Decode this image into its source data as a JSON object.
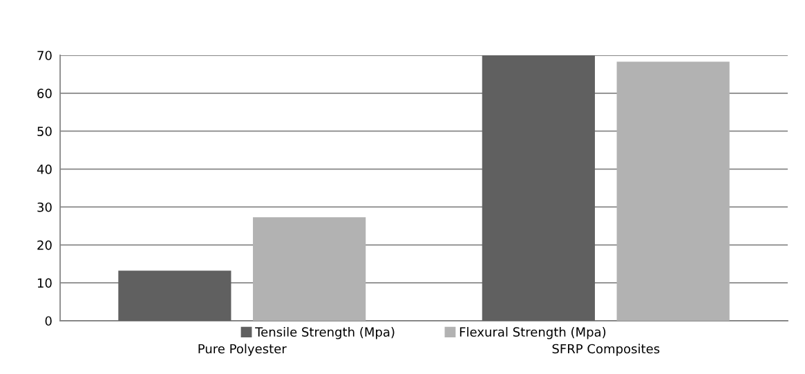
{
  "chart_data": {
    "type": "bar",
    "categories": [
      "Pure Polyester",
      "SFRP Composites"
    ],
    "series": [
      {
        "name": "Tensile Strength (Mpa)",
        "color": "#606060",
        "values": [
          13.2,
          70
        ]
      },
      {
        "name": "Flexural Strength (Mpa)",
        "color": "#b2b2b2",
        "values": [
          27.3,
          68.3
        ]
      }
    ],
    "ylim": [
      0,
      70
    ],
    "yticks": [
      0,
      10,
      20,
      30,
      40,
      50,
      60,
      70
    ],
    "grid": "y",
    "legend": "bottom"
  }
}
